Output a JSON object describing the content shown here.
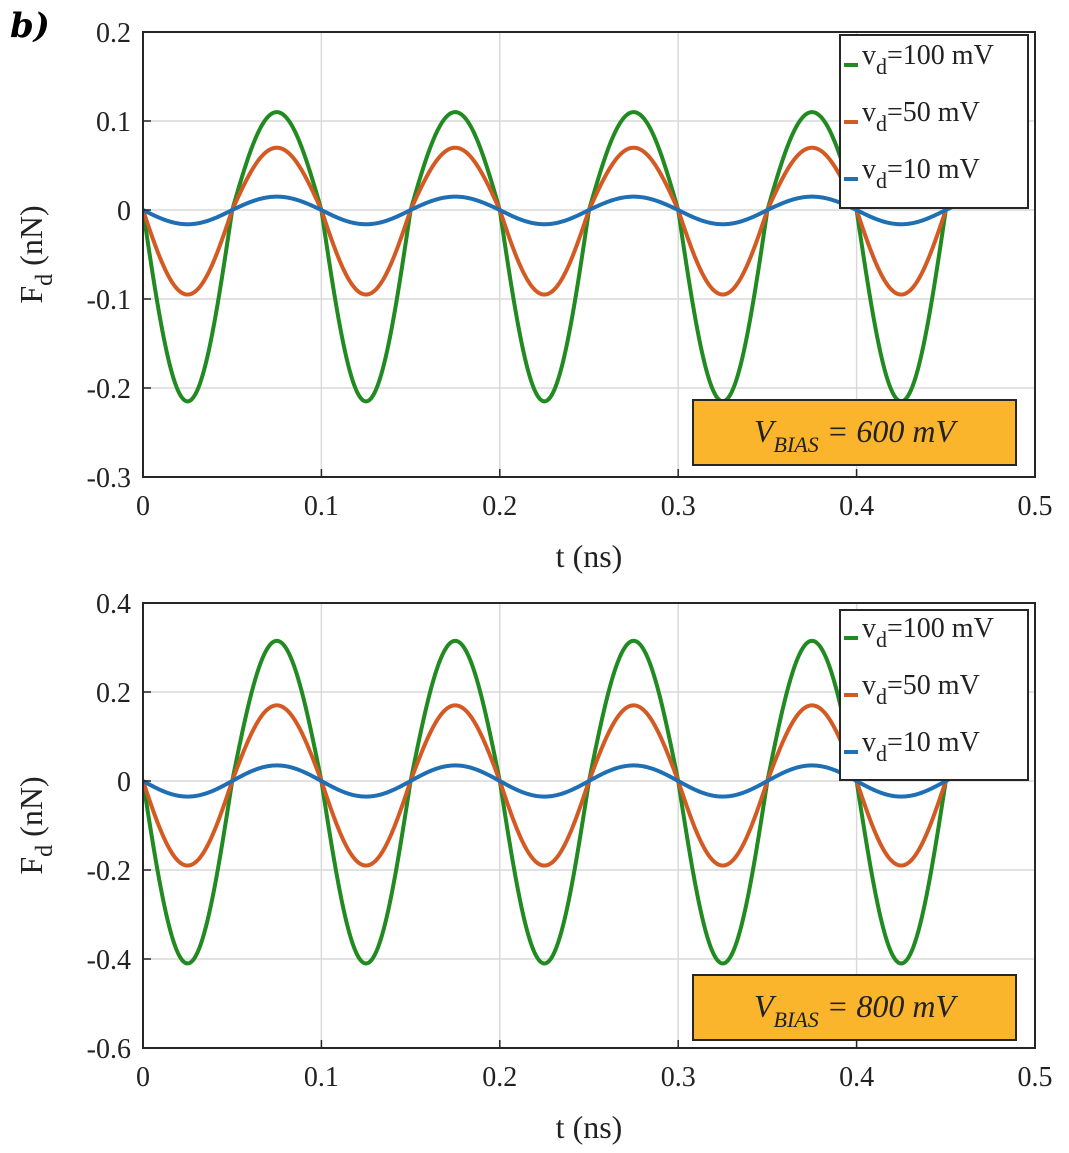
{
  "figure": {
    "panel_label": "b)"
  },
  "chart_data": [
    {
      "type": "line",
      "title": "",
      "xlabel": "t (ns)",
      "ylabel": "F",
      "ylabel_sub": "d",
      "ylabel_unit": " (nN)",
      "xlim": [
        0,
        0.5
      ],
      "ylim": [
        -0.3,
        0.2
      ],
      "xticks": [
        0,
        0.1,
        0.2,
        0.3,
        0.4,
        0.5
      ],
      "xtick_labels": [
        "0",
        "0.1",
        "0.2",
        "0.3",
        "0.4",
        "0.5"
      ],
      "yticks": [
        -0.3,
        -0.2,
        -0.1,
        0,
        0.1,
        0.2
      ],
      "ytick_labels": [
        "-0.3",
        "-0.2",
        "-0.1",
        "0",
        "0.1",
        "0.2"
      ],
      "grid": true,
      "legend_position": "top-right",
      "waveform": {
        "period_ns": 0.1,
        "t_end_ns": 0.455
      },
      "series": [
        {
          "name": "v_d=100 mV",
          "label_main": "v",
          "label_sub": "d",
          "label_rest": "=100 mV",
          "color": "#218a21",
          "peak": 0.11,
          "trough": -0.215
        },
        {
          "name": "v_d=50 mV",
          "label_main": "v",
          "label_sub": "d",
          "label_rest": "=50 mV",
          "color": "#d45a23",
          "peak": 0.07,
          "trough": -0.095
        },
        {
          "name": "v_d=10 mV",
          "label_main": "v",
          "label_sub": "d",
          "label_rest": "=10 mV",
          "color": "#1f6fb4",
          "peak": 0.015,
          "trough": -0.016
        }
      ],
      "annotation": {
        "main": "V",
        "sub": "BIAS",
        "rest": " = 600 mV",
        "bg_color": "#fbb52d"
      }
    },
    {
      "type": "line",
      "title": "",
      "xlabel": "t (ns)",
      "ylabel": "F",
      "ylabel_sub": "d",
      "ylabel_unit": " (nN)",
      "xlim": [
        0,
        0.5
      ],
      "ylim": [
        -0.6,
        0.4
      ],
      "xticks": [
        0,
        0.1,
        0.2,
        0.3,
        0.4,
        0.5
      ],
      "xtick_labels": [
        "0",
        "0.1",
        "0.2",
        "0.3",
        "0.4",
        "0.5"
      ],
      "yticks": [
        -0.6,
        -0.4,
        -0.2,
        0,
        0.2,
        0.4
      ],
      "ytick_labels": [
        "-0.6",
        "-0.4",
        "-0.2",
        "0",
        "0.2",
        "0.4"
      ],
      "grid": true,
      "legend_position": "top-right",
      "waveform": {
        "period_ns": 0.1,
        "t_end_ns": 0.455
      },
      "series": [
        {
          "name": "v_d=100 mV",
          "label_main": "v",
          "label_sub": "d",
          "label_rest": "=100 mV",
          "color": "#218a21",
          "peak": 0.315,
          "trough": -0.41
        },
        {
          "name": "v_d=50 mV",
          "label_main": "v",
          "label_sub": "d",
          "label_rest": "=50 mV",
          "color": "#d45a23",
          "peak": 0.17,
          "trough": -0.19
        },
        {
          "name": "v_d=10 mV",
          "label_main": "v",
          "label_sub": "d",
          "label_rest": "=10 mV",
          "color": "#1f6fb4",
          "peak": 0.035,
          "trough": -0.035
        }
      ],
      "annotation": {
        "main": "V",
        "sub": "BIAS",
        "rest": " = 800 mV",
        "bg_color": "#fbb52d"
      }
    }
  ]
}
